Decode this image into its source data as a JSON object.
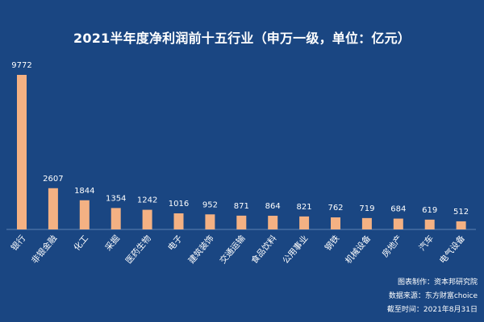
{
  "chart_data": {
    "type": "bar",
    "title": "2021半年度净利润前十五行业（申万一级，单位：亿元）",
    "categories": [
      "银行",
      "非银金融",
      "化工",
      "采掘",
      "医药生物",
      "电子",
      "建筑装饰",
      "交通运输",
      "食品饮料",
      "公用事业",
      "钢铁",
      "机械设备",
      "房地产",
      "汽车",
      "电气设备"
    ],
    "values": [
      9772,
      2607,
      1844,
      1354,
      1242,
      1016,
      952,
      871,
      864,
      821,
      762,
      719,
      684,
      619,
      512
    ],
    "ylim": [
      0,
      10000
    ],
    "grid": false,
    "legend": "none",
    "bar_color": "#f4b183",
    "background_color": "#1a4682"
  },
  "footer": {
    "producer": "图表制作：资本邦研究院",
    "source": "数据来源：东方财富choice",
    "cutoff": "截至时间：2021年8月31日"
  }
}
